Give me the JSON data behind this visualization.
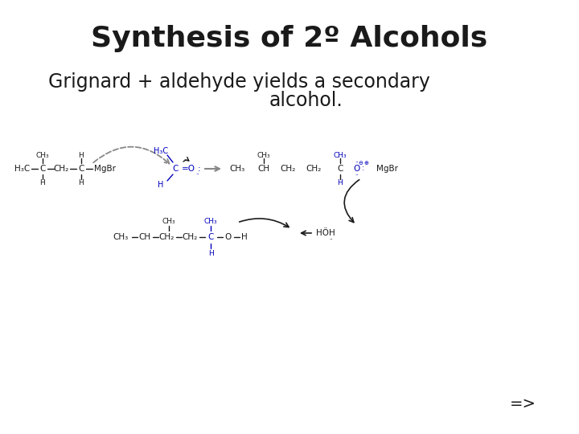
{
  "title": "Synthesis of 2º Alcohols",
  "subtitle_line1": "Grignard + aldehyde yields a secondary",
  "subtitle_line2": "alcohol.",
  "footer": "=>",
  "bg_color": "#ffffff",
  "title_fontsize": 26,
  "subtitle_fontsize": 17,
  "black": "#1a1a1a",
  "blue": "#0000bb",
  "gray": "#888888",
  "struct_fs": 7.5,
  "struct_fs_small": 6.5
}
